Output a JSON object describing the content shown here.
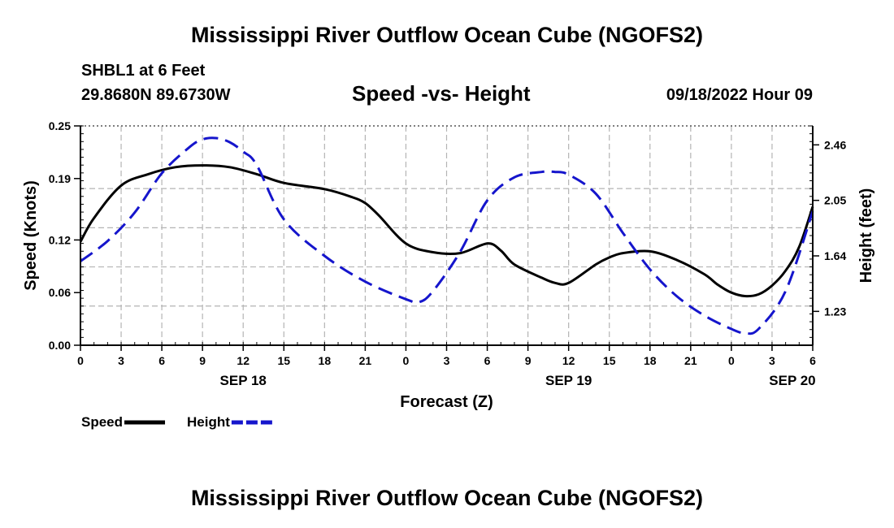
{
  "page": {
    "title": "Mississippi River Outflow Ocean Cube (NGOFS2)",
    "footer_title": "Mississippi River Outflow Ocean Cube (NGOFS2)",
    "station": "SHBL1 at 6 Feet",
    "coordinates": "29.8680N  89.6730W",
    "subtitle": "Speed -vs- Height",
    "datetime": "09/18/2022 Hour 09"
  },
  "chart_data": {
    "type": "line",
    "title": "Speed -vs- Height",
    "xlabel": "Forecast (Z)",
    "ylabel": "Speed (Knots)",
    "y2label": "Height (feet)",
    "x_unit": "hours since SEP 18 00Z",
    "xlim": [
      0,
      54
    ],
    "ylim": [
      0,
      0.25
    ],
    "y2lim": [
      0.98,
      2.6
    ],
    "grid": true,
    "x_ticks": [
      0,
      3,
      6,
      9,
      12,
      15,
      18,
      21,
      24,
      27,
      30,
      33,
      36,
      39,
      42,
      45,
      48,
      51,
      54
    ],
    "x_tick_labels": [
      "0",
      "3",
      "6",
      "9",
      "12",
      "15",
      "18",
      "21",
      "0",
      "3",
      "6",
      "9",
      "12",
      "15",
      "18",
      "21",
      "0",
      "3",
      "6"
    ],
    "date_labels": [
      {
        "x": 12,
        "label": "SEP 18"
      },
      {
        "x": 36,
        "label": "SEP 19"
      },
      {
        "x": 52.5,
        "label": "SEP 20"
      }
    ],
    "y_ticks": [
      0.0,
      0.06,
      0.12,
      0.19,
      0.25
    ],
    "y_tick_labels": [
      "0.00",
      "0.06",
      "0.12",
      "0.19",
      "0.25"
    ],
    "y2_ticks": [
      1.23,
      1.64,
      2.05,
      2.46
    ],
    "y2_tick_labels": [
      "1.23",
      "1.64",
      "2.05",
      "2.46"
    ],
    "series": [
      {
        "name": "Speed",
        "axis": "left",
        "color": "#000000",
        "dash": false,
        "x": [
          0,
          1,
          3,
          5,
          7,
          9,
          11,
          13,
          15,
          18,
          20,
          21,
          22,
          24,
          26,
          28,
          30,
          31,
          32,
          34,
          35,
          36,
          38,
          39,
          40,
          42,
          44,
          46,
          47,
          48,
          49,
          50,
          51,
          52,
          53,
          54
        ],
        "y": [
          0.118,
          0.145,
          0.182,
          0.195,
          0.203,
          0.205,
          0.203,
          0.195,
          0.185,
          0.178,
          0.169,
          0.162,
          0.148,
          0.116,
          0.106,
          0.105,
          0.116,
          0.108,
          0.092,
          0.077,
          0.071,
          0.071,
          0.092,
          0.1,
          0.105,
          0.107,
          0.097,
          0.081,
          0.069,
          0.06,
          0.056,
          0.058,
          0.068,
          0.085,
          0.112,
          0.158
        ]
      },
      {
        "name": "Height",
        "axis": "right",
        "color": "#1515cc",
        "dash": true,
        "x": [
          0,
          2,
          4,
          6,
          8,
          9,
          10,
          11,
          12,
          13,
          15,
          18,
          21,
          24,
          25,
          26,
          28,
          30,
          32,
          34,
          35,
          36,
          38,
          40,
          42,
          44,
          46,
          48,
          49,
          50,
          52,
          54
        ],
        "y": [
          1.6,
          1.75,
          1.96,
          2.25,
          2.44,
          2.5,
          2.51,
          2.48,
          2.41,
          2.31,
          1.91,
          1.64,
          1.45,
          1.32,
          1.3,
          1.38,
          1.67,
          2.05,
          2.22,
          2.26,
          2.26,
          2.24,
          2.1,
          1.81,
          1.54,
          1.34,
          1.2,
          1.1,
          1.07,
          1.1,
          1.38,
          1.97
        ]
      }
    ],
    "legend": [
      {
        "label": "Speed",
        "color": "#000000",
        "dash": false
      },
      {
        "label": "Height",
        "color": "#1515cc",
        "dash": true
      }
    ],
    "legend_position": "bottom-left"
  }
}
